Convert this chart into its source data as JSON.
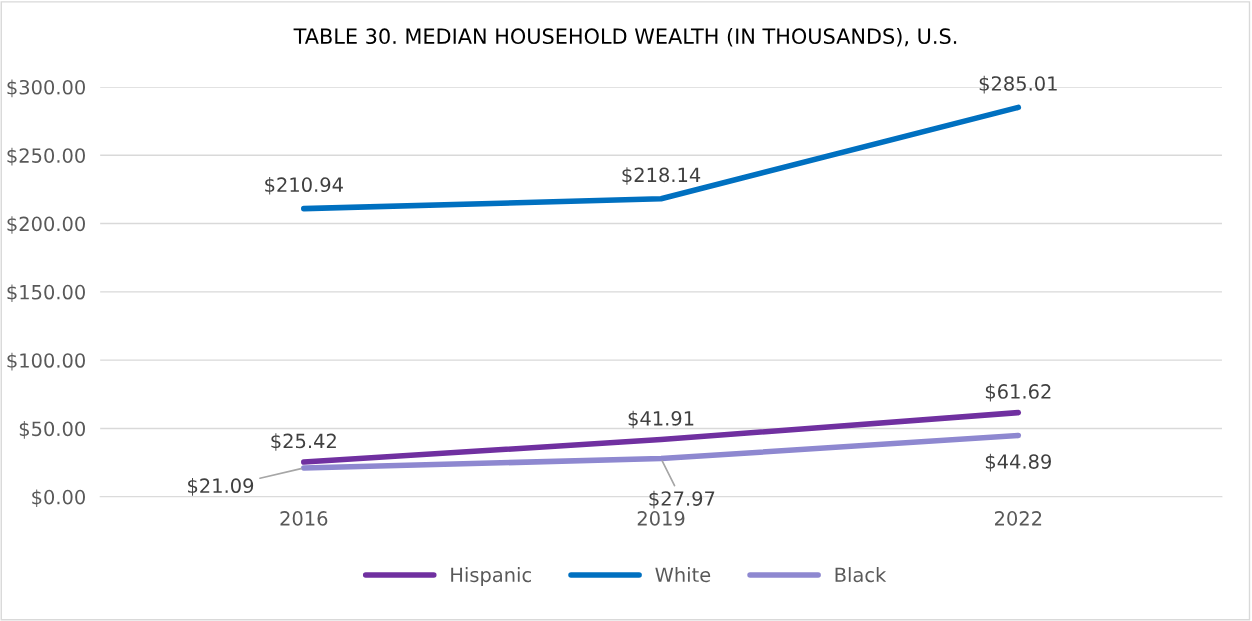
{
  "chart_data": {
    "type": "line",
    "title": "TABLE 30. MEDIAN HOUSEHOLD WEALTH (IN THOUSANDS), U.S.",
    "categories": [
      "2016",
      "2019",
      "2022"
    ],
    "series": [
      {
        "name": "Hispanic",
        "color": "#7030a0",
        "values": [
          25.42,
          41.91,
          61.62
        ],
        "value_labels": [
          "$25.42",
          "$41.91",
          "$61.62"
        ]
      },
      {
        "name": "White",
        "color": "#0070c0",
        "values": [
          210.94,
          218.14,
          285.01
        ],
        "value_labels": [
          "$210.94",
          "$218.14",
          "$285.01"
        ]
      },
      {
        "name": "Black",
        "color": "#8e88d0",
        "values": [
          21.09,
          27.97,
          44.89
        ],
        "value_labels": [
          "$21.09",
          "$27.97",
          "$44.89"
        ]
      }
    ],
    "ylim": [
      0,
      300
    ],
    "yticks": [
      {
        "value": 0,
        "label": "$0.00"
      },
      {
        "value": 50,
        "label": "$50.00"
      },
      {
        "value": 100,
        "label": "$100.00"
      },
      {
        "value": 150,
        "label": "$150.00"
      },
      {
        "value": 200,
        "label": "$200.00"
      },
      {
        "value": 250,
        "label": "$250.00"
      },
      {
        "value": 300,
        "label": "$300.00"
      }
    ],
    "grid": "y",
    "legend": "bottom",
    "marker": "none",
    "line_style": "solid"
  }
}
